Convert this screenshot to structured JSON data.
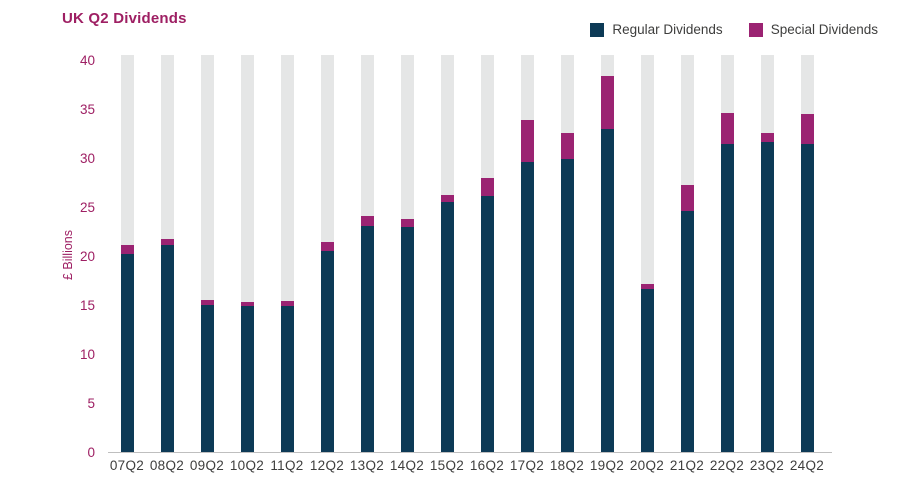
{
  "header": {
    "title": "UK Q2 Dividends"
  },
  "legend": {
    "items": [
      {
        "label": "Regular Dividends",
        "color": "#0d3a56"
      },
      {
        "label": "Special Dividends",
        "color": "#9b2372"
      }
    ],
    "position": "top-right"
  },
  "chart_data": {
    "type": "bar",
    "stacked": true,
    "title": "UK Q2 Dividends",
    "xlabel": "",
    "ylabel": "£ Billions",
    "categories": [
      "07Q2",
      "08Q2",
      "09Q2",
      "10Q2",
      "11Q2",
      "12Q2",
      "13Q2",
      "14Q2",
      "15Q2",
      "16Q2",
      "17Q2",
      "18Q2",
      "19Q2",
      "20Q2",
      "21Q2",
      "22Q2",
      "23Q2",
      "24Q2"
    ],
    "series": [
      {
        "name": "Regular Dividends",
        "color": "#0d3a56",
        "values": [
          20.2,
          21.1,
          15.0,
          14.9,
          14.9,
          20.5,
          23.1,
          23.0,
          25.5,
          26.1,
          29.6,
          29.9,
          33.0,
          16.6,
          24.6,
          31.4,
          31.6,
          31.4
        ]
      },
      {
        "name": "Special Dividends",
        "color": "#9b2372",
        "values": [
          0.9,
          0.6,
          0.5,
          0.4,
          0.5,
          0.9,
          1.0,
          0.8,
          0.7,
          1.9,
          4.3,
          2.7,
          5.4,
          0.5,
          2.6,
          3.2,
          1.0,
          3.1
        ]
      }
    ],
    "totals": [
      21.1,
      21.7,
      15.5,
      15.3,
      15.4,
      21.4,
      24.1,
      23.8,
      26.2,
      28.0,
      33.9,
      32.6,
      38.4,
      17.1,
      27.2,
      34.6,
      32.6,
      34.5
    ],
    "yticks": [
      0,
      5,
      10,
      15,
      20,
      25,
      30,
      35,
      40
    ],
    "ylim": [
      0,
      40.5
    ],
    "grid": false,
    "background_bars": {
      "color": "#e5e6e6",
      "max": 40.5
    },
    "legend_position": "top-right"
  },
  "colors": {
    "title": "#9e1f63",
    "axis_labels": "#9e1f63",
    "x_labels": "#3e3e3d",
    "axis_line": "#bfbfbf",
    "regular": "#0d3a56",
    "special": "#9b2372",
    "background_bar": "#e5e6e6"
  }
}
